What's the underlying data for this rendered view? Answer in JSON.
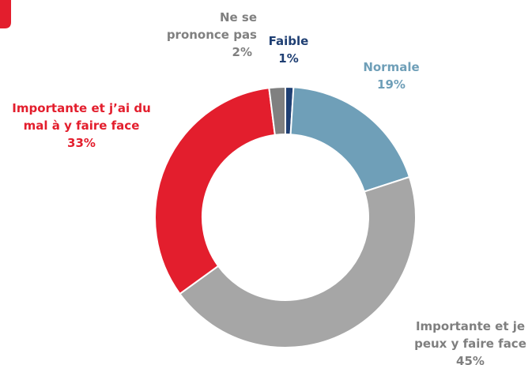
{
  "chart_data": {
    "type": "donut",
    "categories": [
      "Faible",
      "Normale",
      "Importante et je peux y faire face",
      "Importante et j’ai du mal à y faire face",
      "Ne se prononce pas"
    ],
    "values": [
      1,
      19,
      45,
      33,
      2
    ],
    "value_labels": [
      "1%",
      "19%",
      "45%",
      "33%",
      "2%"
    ],
    "colors": [
      "#1f3f73",
      "#6f9fb8",
      "#a6a6a6",
      "#e31e2d",
      "#808080"
    ]
  }
}
